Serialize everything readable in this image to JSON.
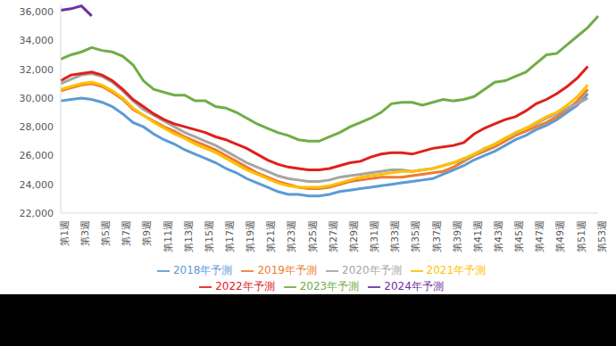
{
  "chart_data": {
    "type": "line",
    "categories": [
      "第1週",
      null,
      "第3週",
      null,
      "第5週",
      null,
      "第7週",
      null,
      "第9週",
      null,
      "第11週",
      null,
      "第13週",
      null,
      "第15週",
      null,
      "第17週",
      null,
      "第19週",
      null,
      "第21週",
      null,
      "第23週",
      null,
      "第25週",
      null,
      "第27週",
      null,
      "第29週",
      null,
      "第31週",
      null,
      "第33週",
      null,
      "第35週",
      null,
      "第37週",
      null,
      "第39週",
      null,
      "第41週",
      null,
      "第43週",
      null,
      "第45週",
      null,
      "第47週",
      null,
      "第49週",
      null,
      "第51週",
      null,
      "第53週"
    ],
    "ylim": [
      22000,
      36500
    ],
    "yticks": [
      {
        "value": 22000,
        "label": "22,000"
      },
      {
        "value": 24000,
        "label": "24,000"
      },
      {
        "value": 26000,
        "label": "26,000"
      },
      {
        "value": 28000,
        "label": "28,000"
      },
      {
        "value": 30000,
        "label": "30,000"
      },
      {
        "value": 32000,
        "label": "32,000"
      },
      {
        "value": 34000,
        "label": "34,000"
      },
      {
        "value": 36000,
        "label": "36,000"
      }
    ],
    "grid": false,
    "legend": "bottom",
    "series": [
      {
        "name": "2018年予測",
        "color": "#5b9bd5",
        "values": [
          29800,
          29900,
          30000,
          29900,
          29700,
          29400,
          28900,
          28300,
          28000,
          27500,
          27100,
          26800,
          26400,
          26100,
          25800,
          25500,
          25100,
          24800,
          24400,
          24100,
          23800,
          23500,
          23300,
          23300,
          23200,
          23200,
          23300,
          23500,
          23600,
          23700,
          23800,
          23900,
          24000,
          24100,
          24200,
          24300,
          24400,
          24700,
          25000,
          25300,
          25700,
          26000,
          26300,
          26700,
          27100,
          27400,
          27800,
          28100,
          28500,
          29000,
          29500,
          30300,
          null
        ]
      },
      {
        "name": "2019年予測",
        "color": "#ed7d31",
        "values": [
          30500,
          30700,
          30900,
          31000,
          30800,
          30400,
          29900,
          29200,
          28800,
          28400,
          28000,
          27700,
          27300,
          27000,
          26700,
          26400,
          26000,
          25600,
          25200,
          24800,
          24500,
          24200,
          24000,
          23800,
          23700,
          23700,
          23800,
          24000,
          24200,
          24300,
          24400,
          24500,
          24500,
          24500,
          24600,
          24700,
          24800,
          24900,
          25200,
          25600,
          26000,
          26300,
          26600,
          27000,
          27400,
          27700,
          28000,
          28300,
          28700,
          29200,
          29800,
          30600,
          null
        ]
      },
      {
        "name": "2020年予測",
        "color": "#a5a5a5",
        "values": [
          31000,
          31300,
          31600,
          31700,
          31500,
          31100,
          30500,
          29800,
          29200,
          28800,
          28400,
          28000,
          27600,
          27300,
          27000,
          26700,
          26300,
          25900,
          25500,
          25200,
          24900,
          24600,
          24400,
          24300,
          24200,
          24200,
          24300,
          24500,
          24600,
          24700,
          24800,
          24900,
          25000,
          25000,
          24900,
          25000,
          25100,
          25300,
          25500,
          25700,
          26100,
          26400,
          26800,
          27200,
          27500,
          27900,
          28200,
          28600,
          28900,
          29300,
          29600,
          30000,
          null
        ]
      },
      {
        "name": "2021年予測",
        "color": "#ffc000",
        "values": [
          30600,
          30800,
          31000,
          31100,
          30900,
          30500,
          30000,
          29300,
          28800,
          28300,
          27900,
          27500,
          27200,
          26800,
          26500,
          26200,
          25800,
          25400,
          25000,
          24700,
          24400,
          24100,
          23900,
          23800,
          23800,
          23800,
          23900,
          24100,
          24300,
          24500,
          24600,
          24700,
          24800,
          24900,
          24900,
          25000,
          25100,
          25300,
          25500,
          25800,
          26100,
          26500,
          26800,
          27200,
          27600,
          27900,
          28300,
          28700,
          29000,
          29500,
          30100,
          30900,
          null
        ]
      },
      {
        "name": "2022年予測",
        "color": "#e0201b",
        "values": [
          31200,
          31600,
          31700,
          31800,
          31600,
          31200,
          30600,
          29900,
          29400,
          28900,
          28500,
          28200,
          28000,
          27800,
          27600,
          27300,
          27100,
          26800,
          26500,
          26100,
          25700,
          25400,
          25200,
          25100,
          25000,
          25000,
          25100,
          25300,
          25500,
          25600,
          25900,
          26100,
          26200,
          26200,
          26100,
          26300,
          26500,
          26600,
          26700,
          26900,
          27500,
          27900,
          28200,
          28500,
          28700,
          29100,
          29600,
          29900,
          30300,
          30800,
          31400,
          32200,
          null
        ]
      },
      {
        "name": "2023年予測",
        "color": "#70ad47",
        "values": [
          32700,
          33000,
          33200,
          33500,
          33300,
          33200,
          32900,
          32300,
          31200,
          30600,
          30400,
          30200,
          30200,
          29800,
          29800,
          29400,
          29300,
          29000,
          28600,
          28200,
          27900,
          27600,
          27400,
          27100,
          27000,
          27000,
          27300,
          27600,
          28000,
          28300,
          28600,
          29000,
          29600,
          29700,
          29700,
          29500,
          29700,
          29900,
          29800,
          29900,
          30100,
          30600,
          31100,
          31200,
          31500,
          31800,
          32400,
          33000,
          33100,
          33700,
          34300,
          34900,
          35700
        ]
      },
      {
        "name": "2024年予測",
        "color": "#7030a0",
        "values": [
          36100,
          36200,
          36400,
          35700,
          null,
          null,
          null,
          null,
          null,
          null,
          null,
          null,
          null,
          null,
          null,
          null,
          null,
          null,
          null,
          null,
          null,
          null,
          null,
          null,
          null,
          null,
          null,
          null,
          null,
          null,
          null,
          null,
          null,
          null,
          null,
          null,
          null,
          null,
          null,
          null,
          null,
          null,
          null,
          null,
          null,
          null,
          null,
          null,
          null,
          null,
          null,
          null,
          null
        ]
      }
    ]
  }
}
